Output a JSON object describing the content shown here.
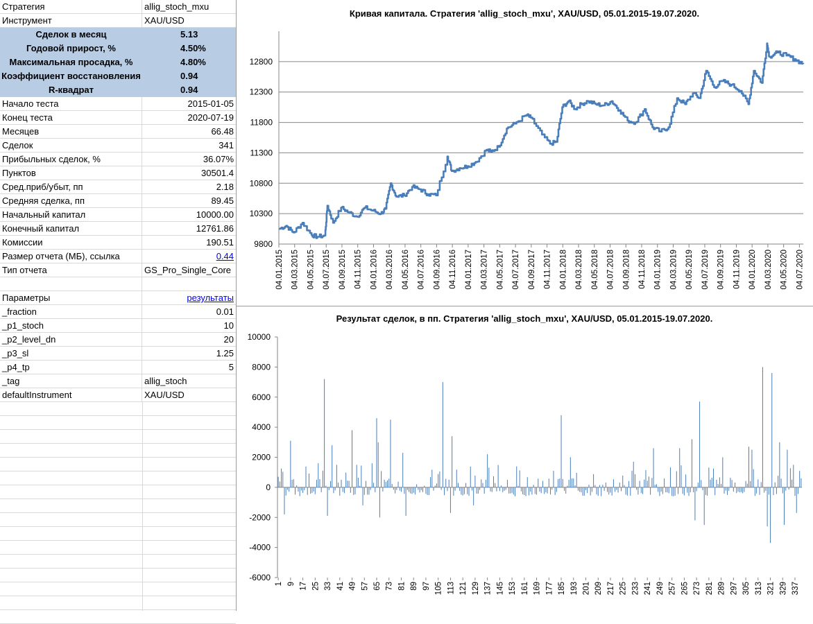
{
  "sheet": {
    "rows": [
      {
        "label": "Стратегия",
        "value": "allig_stoch_mxu",
        "align": "l"
      },
      {
        "label": "Инструмент",
        "value": "XAU/USD",
        "align": "l"
      },
      {
        "label": "Сделок в месяц",
        "value": "5.13",
        "hl": true
      },
      {
        "label": "Годовой прирост, %",
        "value": "4.50%",
        "hl": true
      },
      {
        "label": "Максимальная просадка, %",
        "value": "4.80%",
        "hl": true
      },
      {
        "label": "Коэффициент восстановления",
        "value": "0.94",
        "hl": true
      },
      {
        "label": "R-квадрат",
        "value": "0.94",
        "hl": true
      },
      {
        "label": "Начало теста",
        "value": "2015-01-05",
        "align": "r"
      },
      {
        "label": "Конец теста",
        "value": "2020-07-19",
        "align": "r"
      },
      {
        "label": "Месяцев",
        "value": "66.48",
        "align": "r"
      },
      {
        "label": "Сделок",
        "value": "341",
        "align": "r"
      },
      {
        "label": "Прибыльных сделок, %",
        "value": "36.07%",
        "align": "r"
      },
      {
        "label": "Пунктов",
        "value": "30501.4",
        "align": "r"
      },
      {
        "label": "Сред.приб/убыт, пп",
        "value": "2.18",
        "align": "r"
      },
      {
        "label": "Средняя сделка, пп",
        "value": "89.45",
        "align": "r"
      },
      {
        "label": "Начальный капитал",
        "value": "10000.00",
        "align": "r"
      },
      {
        "label": "Конечный капитал",
        "value": "12761.86",
        "align": "r"
      },
      {
        "label": "Комиссии",
        "value": "190.51",
        "align": "r"
      },
      {
        "label": "Размер отчета (МБ), ссылка",
        "value": "0.44",
        "align": "r",
        "link": true
      },
      {
        "label": "Тип отчета",
        "value": "GS_Pro_Single_Core",
        "align": "l"
      },
      {
        "label": "",
        "value": "",
        "align": "r"
      },
      {
        "label": "Параметры",
        "value": "результаты",
        "align": "r",
        "link": true
      },
      {
        "label": "_fraction",
        "value": "0.01",
        "align": "r"
      },
      {
        "label": "_p1_stoch",
        "value": "10",
        "align": "r"
      },
      {
        "label": "_p2_level_dn",
        "value": "20",
        "align": "r"
      },
      {
        "label": "_p3_sl",
        "value": "1.25",
        "align": "r"
      },
      {
        "label": "_p4_tp",
        "value": "5",
        "align": "r"
      },
      {
        "label": "_tag",
        "value": "allig_stoch",
        "align": "l"
      },
      {
        "label": "defaultInstrument",
        "value": "XAU/USD",
        "align": "l"
      }
    ]
  },
  "chart_data": [
    {
      "type": "line",
      "title": "Кривая капитала. Стратегия 'allig_stoch_mxu', XAU/USD, 05.01.2015-19.07.2020.",
      "xlabel": "",
      "ylabel": "",
      "ylim": [
        9800,
        13300
      ],
      "yticks": [
        9800,
        10300,
        10800,
        11300,
        11800,
        12300,
        12800
      ],
      "xticks": [
        "04.01.2015",
        "04.03.2015",
        "04.05.2015",
        "04.07.2015",
        "04.09.2015",
        "04.11.2015",
        "04.01.2016",
        "04.03.2016",
        "04.05.2016",
        "04.07.2016",
        "04.09.2016",
        "04.11.2016",
        "04.01.2017",
        "04.03.2017",
        "04.05.2017",
        "04.07.2017",
        "04.09.2017",
        "04.11.2017",
        "04.01.2018",
        "04.03.2018",
        "04.05.2018",
        "04.07.2018",
        "04.09.2018",
        "04.11.2018",
        "04.01.2019",
        "04.03.2019",
        "04.05.2019",
        "04.07.2019",
        "04.09.2019",
        "04.11.2019",
        "04.01.2020",
        "04.03.2020",
        "04.05.2020",
        "04.07.2020"
      ],
      "grid": true,
      "color": "#4a7ebb",
      "series": [
        {
          "x": [
            "2015-01-05",
            "2015-02-01",
            "2015-03-01",
            "2015-04-05",
            "2015-05-10",
            "2015-06-01",
            "2015-07-01",
            "2015-07-10",
            "2015-08-01",
            "2015-09-01",
            "2015-10-01",
            "2015-11-01",
            "2015-12-01",
            "2016-01-01",
            "2016-02-01",
            "2016-02-20",
            "2016-03-10",
            "2016-04-01",
            "2016-05-01",
            "2016-06-01",
            "2016-07-01",
            "2016-08-01",
            "2016-09-01",
            "2016-10-15",
            "2016-11-01",
            "2016-12-01",
            "2017-01-01",
            "2017-02-01",
            "2017-03-15",
            "2017-04-01",
            "2017-05-01",
            "2017-06-01",
            "2017-07-01",
            "2017-08-15",
            "2017-09-01",
            "2017-10-15",
            "2017-11-15",
            "2017-12-10",
            "2018-01-01",
            "2018-01-25",
            "2018-02-20",
            "2018-03-15",
            "2018-04-10",
            "2018-05-10",
            "2018-06-10",
            "2018-07-10",
            "2018-08-10",
            "2018-09-10",
            "2018-10-10",
            "2018-11-15",
            "2018-12-15",
            "2019-01-15",
            "2019-02-15",
            "2019-03-20",
            "2019-04-20",
            "2019-05-20",
            "2019-06-15",
            "2019-07-10",
            "2019-08-10",
            "2019-09-10",
            "2019-10-15",
            "2019-11-20",
            "2019-12-20",
            "2020-01-10",
            "2020-02-10",
            "2020-03-01",
            "2020-03-10",
            "2020-04-10",
            "2020-05-15",
            "2020-06-15",
            "2020-07-19"
          ],
          "values": [
            10050,
            10100,
            9990,
            10150,
            9950,
            9920,
            9940,
            10430,
            10150,
            10400,
            10320,
            10250,
            10400,
            10350,
            10300,
            10380,
            10800,
            10580,
            10600,
            10740,
            10700,
            10620,
            10600,
            11240,
            11000,
            11050,
            11080,
            11150,
            11350,
            11320,
            11400,
            11700,
            11780,
            11920,
            11880,
            11600,
            11450,
            11480,
            12050,
            12150,
            12020,
            12100,
            12150,
            12100,
            12080,
            12150,
            12000,
            11830,
            11800,
            12020,
            11720,
            11650,
            11720,
            12200,
            12100,
            12280,
            12200,
            12650,
            12380,
            12480,
            12420,
            12320,
            12100,
            12650,
            12450,
            13100,
            12880,
            12950,
            12900,
            12840,
            12762
          ]
        }
      ]
    },
    {
      "type": "bar",
      "title": "Результат сделок, в пп. Стратегия 'allig_stoch_mxu', XAU/USD, 05.01.2015-19.07.2020.",
      "xlabel": "",
      "ylabel": "",
      "ylim": [
        -6000,
        10000
      ],
      "yticks": [
        -6000,
        -4000,
        -2000,
        0,
        2000,
        4000,
        6000,
        8000,
        10000
      ],
      "xtick_step": 8,
      "xtick_start": 1,
      "n_trades": 341,
      "grid": false,
      "color": "#4a7ebb",
      "notable_trades": {
        "1": 700,
        "3": 1250,
        "5": -1800,
        "9": 3100,
        "10": 500,
        "27": 1600,
        "31": 7200,
        "33": -1900,
        "36": 2800,
        "39": 1500,
        "49": 3800,
        "52": 1500,
        "56": -1200,
        "62": 1600,
        "65": 4600,
        "66": 3000,
        "67": -2000,
        "74": 4500,
        "82": 2300,
        "84": -1900,
        "108": 7000,
        "113": -1700,
        "114": 3400,
        "128": -1200,
        "137": 2200,
        "185": 4800,
        "191": 2000,
        "232": 1700,
        "245": 2600,
        "262": 2600,
        "270": 3200,
        "272": -2200,
        "275": 5700,
        "278": -2500,
        "290": 2000,
        "307": 2700,
        "309": 2500,
        "316": 8000,
        "319": -2600,
        "321": -3700,
        "322": 7600,
        "327": 3000,
        "330": -2500,
        "332": 2500,
        "336": 1500,
        "338": -1700,
        "341": 600
      }
    }
  ]
}
